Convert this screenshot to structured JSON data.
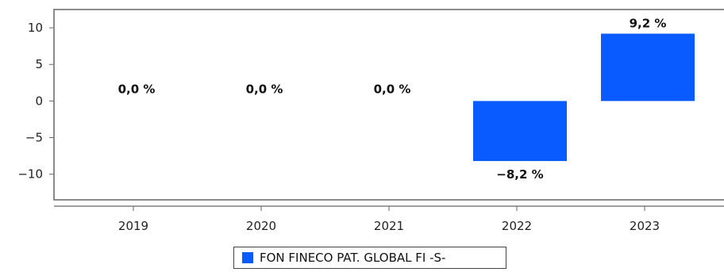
{
  "chart_data": {
    "type": "bar",
    "categories": [
      "2019",
      "2020",
      "2021",
      "2022",
      "2023"
    ],
    "series": [
      {
        "name": "FON FINECO PAT. GLOBAL FI -S-",
        "values": [
          0.0,
          0.0,
          0.0,
          -8.2,
          9.2
        ],
        "labels": [
          "0,0 %",
          "0,0 %",
          "0,0 %",
          "−8,2 %",
          "9,2 %"
        ],
        "color": "#0a5bff"
      }
    ],
    "y_ticks": [
      "10",
      "5",
      "0",
      "−5",
      "−10"
    ],
    "y_tick_values": [
      10,
      5,
      0,
      -5,
      -10
    ],
    "ylim": [
      -13.5,
      12.5
    ],
    "grid": false,
    "legend_position": "bottom-center"
  }
}
